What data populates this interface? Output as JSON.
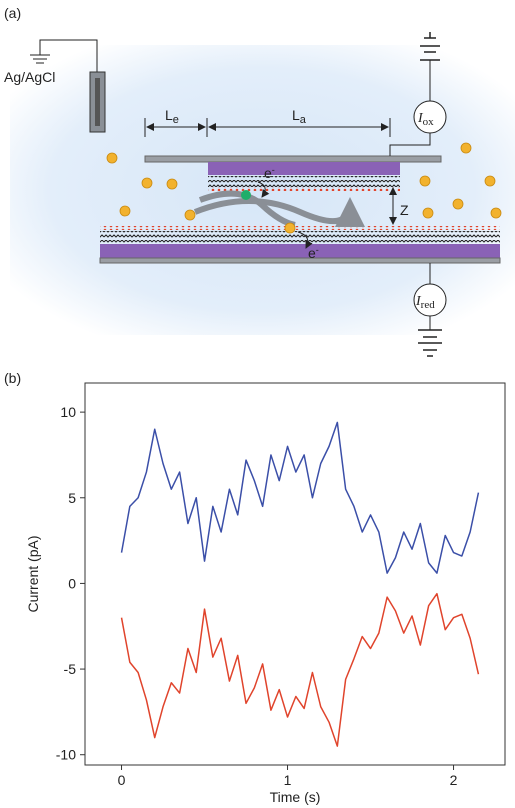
{
  "panels": [
    "(a)",
    "(b)"
  ],
  "diagram": {
    "reference": "Ag/AgCl",
    "le": {
      "main": "L",
      "sub": "e"
    },
    "la": {
      "main": "L",
      "sub": "a"
    },
    "iox": {
      "main": "I",
      "sub": "ox"
    },
    "ired": {
      "main": "I",
      "sub": "red"
    },
    "e_top": {
      "main": "e",
      "sup": "-"
    },
    "e_bottom": {
      "main": "e",
      "sup": "-"
    },
    "gap": "Z"
  },
  "chart_data": {
    "type": "line",
    "x_label": "Time (s)",
    "y_label": "Current (pA)",
    "x": [
      0,
      0.05,
      0.1,
      0.15,
      0.2,
      0.25,
      0.3,
      0.35,
      0.4,
      0.45,
      0.5,
      0.55,
      0.6,
      0.65,
      0.7,
      0.75,
      0.8,
      0.85,
      0.9,
      0.95,
      1.0,
      1.05,
      1.1,
      1.15,
      1.2,
      1.25,
      1.3,
      1.35,
      1.4,
      1.45,
      1.5,
      1.55,
      1.6,
      1.65,
      1.7,
      1.75,
      1.8,
      1.85,
      1.9,
      1.95,
      2.0,
      2.05,
      2.1,
      2.15
    ],
    "series": [
      {
        "color": "#3b4fa8",
        "values": [
          1.8,
          4.5,
          5.0,
          6.5,
          9.0,
          7.0,
          5.5,
          6.5,
          3.5,
          5.0,
          1.3,
          4.5,
          3.0,
          5.5,
          4.0,
          7.2,
          6.0,
          4.5,
          7.5,
          6.0,
          8.0,
          6.5,
          7.5,
          5.0,
          7.0,
          8.0,
          9.4,
          5.5,
          4.5,
          3.0,
          4.0,
          3.0,
          0.6,
          1.5,
          3.0,
          2.0,
          3.5,
          1.2,
          0.6,
          2.8,
          1.8,
          1.6,
          3.0,
          5.3
        ]
      },
      {
        "color": "#e0442c",
        "values": [
          -2.0,
          -4.6,
          -5.2,
          -6.8,
          -9.0,
          -7.2,
          -5.8,
          -6.4,
          -3.8,
          -5.2,
          -1.5,
          -4.3,
          -3.2,
          -5.7,
          -4.2,
          -7.0,
          -6.1,
          -4.7,
          -7.4,
          -6.2,
          -7.8,
          -6.6,
          -7.3,
          -5.2,
          -7.2,
          -8.1,
          -9.5,
          -5.6,
          -4.4,
          -3.1,
          -3.8,
          -2.9,
          -0.8,
          -1.6,
          -2.9,
          -1.9,
          -3.6,
          -1.3,
          -0.6,
          -2.7,
          -2.0,
          -1.8,
          -3.2,
          -5.3
        ]
      }
    ],
    "xlim": [
      -0.22,
      2.31
    ],
    "ylim": [
      -10.6,
      11.7
    ],
    "xticks": [
      0,
      1,
      2
    ],
    "yticks": [
      -10,
      -5,
      0,
      5,
      10
    ]
  }
}
